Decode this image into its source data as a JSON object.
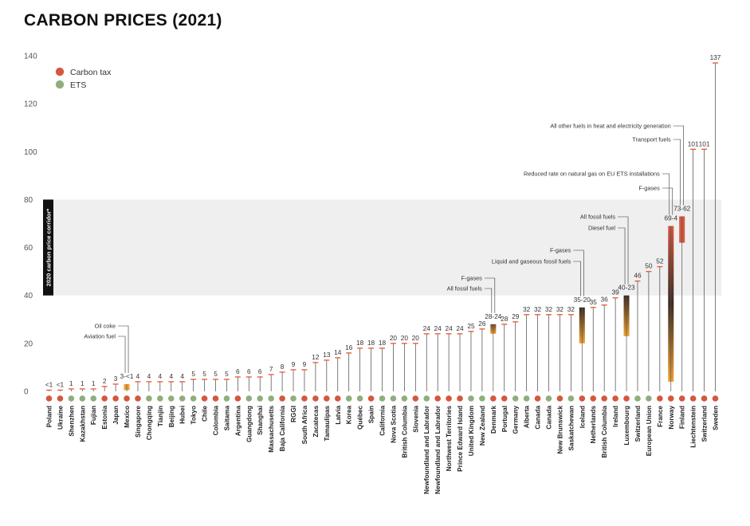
{
  "title": "CARBON PRICES (2021)",
  "chart_data": {
    "type": "bar",
    "title": "CARBON PRICES (2021)",
    "xlabel": "",
    "ylabel": "",
    "ylim": [
      0,
      140
    ],
    "yticks": [
      0,
      20,
      40,
      60,
      80,
      100,
      120,
      140
    ],
    "band": {
      "from": 40,
      "to": 80,
      "label": "2020 carbon price corridor*"
    },
    "legend": [
      {
        "label": "Carbon tax",
        "color": "#d4573e"
      },
      {
        "label": "ETS",
        "color": "#8fae7c"
      }
    ],
    "colors": {
      "tax": "#d4573e",
      "ets": "#8fae7c",
      "tick": "#e8613c",
      "bar_low": "#f0a030",
      "bar_mid": "#3a2a20",
      "bar_high": "#d4573e",
      "bar_mid_brown": "#6b4a2a"
    },
    "categories": [
      {
        "name": "Poland",
        "type": "tax",
        "value": 0.5,
        "label": "<1"
      },
      {
        "name": "Ukraine",
        "type": "tax",
        "value": 0.5,
        "label": "<1"
      },
      {
        "name": "Shenzhen",
        "type": "ets",
        "value": 1,
        "label": "1"
      },
      {
        "name": "Kazakhstan",
        "type": "ets",
        "value": 1,
        "label": "1"
      },
      {
        "name": "Fujian",
        "type": "ets",
        "value": 1,
        "label": "1"
      },
      {
        "name": "Estonia",
        "type": "tax",
        "value": 2,
        "label": "2"
      },
      {
        "name": "Japan",
        "type": "tax",
        "value": 3,
        "label": "3"
      },
      {
        "name": "Mexico",
        "type": "tax",
        "range": [
          0.5,
          3
        ],
        "label": "3-<1"
      },
      {
        "name": "Singapore",
        "type": "tax",
        "value": 4,
        "label": "4"
      },
      {
        "name": "Chongqing",
        "type": "ets",
        "value": 4,
        "label": "4"
      },
      {
        "name": "Tianjin",
        "type": "ets",
        "value": 4,
        "label": "4"
      },
      {
        "name": "Beijing",
        "type": "ets",
        "value": 4,
        "label": "4"
      },
      {
        "name": "Hubei",
        "type": "ets",
        "value": 4,
        "label": "4"
      },
      {
        "name": "Tokyo",
        "type": "ets",
        "value": 5,
        "label": "5"
      },
      {
        "name": "Chile",
        "type": "tax",
        "value": 5,
        "label": "5"
      },
      {
        "name": "Colombia",
        "type": "tax",
        "value": 5,
        "label": "5"
      },
      {
        "name": "Saitama",
        "type": "ets",
        "value": 5,
        "label": "5"
      },
      {
        "name": "Argentina",
        "type": "tax",
        "value": 6,
        "label": "6"
      },
      {
        "name": "Guangdong",
        "type": "ets",
        "value": 6,
        "label": "6"
      },
      {
        "name": "Shanghai",
        "type": "ets",
        "value": 6,
        "label": "6"
      },
      {
        "name": "Massachusetts",
        "type": "ets",
        "value": 7,
        "label": "7"
      },
      {
        "name": "Baja California",
        "type": "tax",
        "value": 8,
        "label": "8"
      },
      {
        "name": "RGGI",
        "type": "ets",
        "value": 9,
        "label": "9"
      },
      {
        "name": "South Africa",
        "type": "tax",
        "value": 9,
        "label": "9"
      },
      {
        "name": "Zacatecas",
        "type": "tax",
        "value": 12,
        "label": "12"
      },
      {
        "name": "Tamaulipas",
        "type": "tax",
        "value": 13,
        "label": "13"
      },
      {
        "name": "Latvia",
        "type": "tax",
        "value": 14,
        "label": "14"
      },
      {
        "name": "Korea",
        "type": "ets",
        "value": 16,
        "label": "16"
      },
      {
        "name": "Québec",
        "type": "ets",
        "value": 18,
        "label": "18"
      },
      {
        "name": "Spain",
        "type": "tax",
        "value": 18,
        "label": "18"
      },
      {
        "name": "California",
        "type": "ets",
        "value": 18,
        "label": "18"
      },
      {
        "name": "Nova Scotia",
        "type": "ets",
        "value": 20,
        "label": "20"
      },
      {
        "name": "British Columbia",
        "type": "ets",
        "value": 20,
        "label": "20"
      },
      {
        "name": "Slovenia",
        "type": "tax",
        "value": 20,
        "label": "20"
      },
      {
        "name": "Newfoundland and Labrador",
        "type": "ets",
        "value": 24,
        "label": "24"
      },
      {
        "name": "Newfoundland and Labrador",
        "type": "tax",
        "value": 24,
        "label": "24"
      },
      {
        "name": "Northwest Territories",
        "type": "tax",
        "value": 24,
        "label": "24"
      },
      {
        "name": "Prince Edward Island",
        "type": "tax",
        "value": 24,
        "label": "24"
      },
      {
        "name": "United Kingdom",
        "type": "ets",
        "value": 25,
        "label": "25"
      },
      {
        "name": "New Zealand",
        "type": "ets",
        "value": 26,
        "label": "26"
      },
      {
        "name": "Denmark",
        "type": "tax",
        "range": [
          24,
          28
        ],
        "label": "28-24"
      },
      {
        "name": "Portugal",
        "type": "tax",
        "value": 28,
        "label": "28"
      },
      {
        "name": "Germany",
        "type": "ets",
        "value": 29,
        "label": "29"
      },
      {
        "name": "Alberta",
        "type": "ets",
        "value": 32,
        "label": "32"
      },
      {
        "name": "Canada",
        "type": "tax",
        "value": 32,
        "label": "32"
      },
      {
        "name": "Canada",
        "type": "ets",
        "value": 32,
        "label": "32"
      },
      {
        "name": "New Brunswick",
        "type": "tax",
        "value": 32,
        "label": "32"
      },
      {
        "name": "Saskatchewan",
        "type": "ets",
        "value": 32,
        "label": "32"
      },
      {
        "name": "Iceland",
        "type": "tax",
        "range": [
          20,
          35
        ],
        "label": "35-20"
      },
      {
        "name": "Netherlands",
        "type": "tax",
        "value": 35,
        "label": "35"
      },
      {
        "name": "British Columbia",
        "type": "tax",
        "value": 36,
        "label": "36"
      },
      {
        "name": "Ireland",
        "type": "tax",
        "value": 39,
        "label": "39"
      },
      {
        "name": "Luxembourg",
        "type": "tax",
        "range": [
          23,
          40
        ],
        "label": "40-23"
      },
      {
        "name": "Switzerland",
        "type": "ets",
        "value": 46,
        "label": "46"
      },
      {
        "name": "European Union",
        "type": "ets",
        "value": 50,
        "label": "50"
      },
      {
        "name": "France",
        "type": "tax",
        "value": 52,
        "label": "52"
      },
      {
        "name": "Norway",
        "type": "tax",
        "range": [
          4,
          69
        ],
        "label": "69-4"
      },
      {
        "name": "Finland",
        "type": "tax",
        "range": [
          62,
          73
        ],
        "label": "73-62"
      },
      {
        "name": "Liechtenstein",
        "type": "tax",
        "value": 101,
        "label": "101"
      },
      {
        "name": "Switzerland",
        "type": "tax",
        "value": 101,
        "label": "101"
      },
      {
        "name": "Sweden",
        "type": "tax",
        "value": 137,
        "label": "137"
      }
    ],
    "annotations": [
      {
        "text": "Oil coke",
        "target": 7,
        "end": "top"
      },
      {
        "text": "Aviation fuel",
        "target": 7,
        "end": "bottom"
      },
      {
        "text": "F-gases",
        "target": 40,
        "end": "top"
      },
      {
        "text": "All fossil fuels",
        "target": 40,
        "end": "bottom"
      },
      {
        "text": "F-gases",
        "target": 48,
        "end": "top"
      },
      {
        "text": "Liquid and gaseous fossil fuels",
        "target": 48,
        "end": "bottom"
      },
      {
        "text": "All fossil fuels",
        "target": 52,
        "end": "top"
      },
      {
        "text": "Diesel fuel",
        "target": 52,
        "end": "bottom"
      },
      {
        "text": "F-gases",
        "target": 56,
        "end": "top"
      },
      {
        "text": "Reduced rate on natural gas on EU ETS installations",
        "target": 56,
        "end": "bottom"
      },
      {
        "text": "All other fuels in heat and electricity generation",
        "target": 57,
        "end": "top"
      },
      {
        "text": "Transport fuels",
        "target": 57,
        "end": "bottom"
      }
    ]
  }
}
